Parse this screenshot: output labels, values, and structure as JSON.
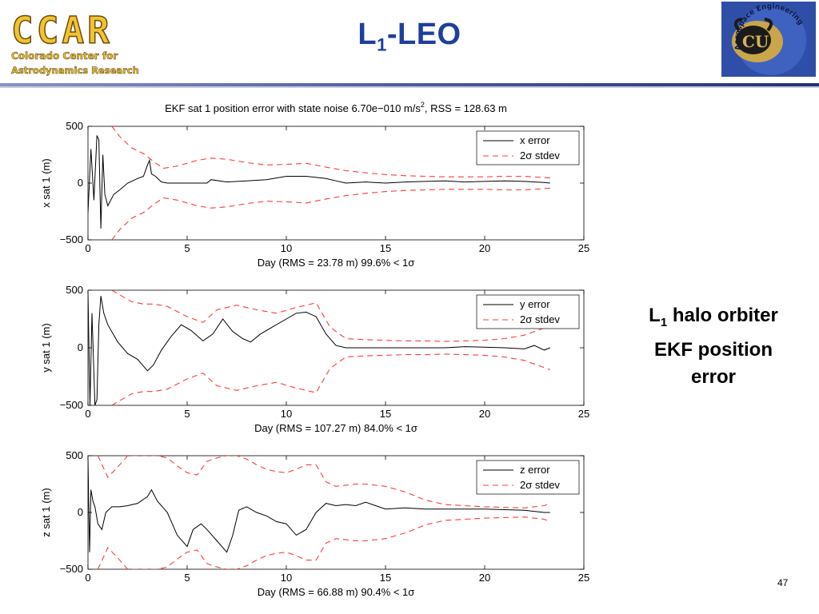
{
  "slide": {
    "title_main": "L",
    "title_sub": "1",
    "title_rest": "-LEO",
    "caption_main": "L",
    "caption_sub": "1",
    "caption_line1_rest": " halo orbiter",
    "caption_line2": "EKF position",
    "caption_line3": "error",
    "page_number": "47"
  },
  "logos": {
    "ccar": {
      "big_text": "CCAR",
      "line1": "Colorado Center for",
      "line2": "Astrodynamics Research"
    },
    "cu": {
      "emblem_text": "CU",
      "arc_text": "Aerospace Engineering"
    }
  },
  "colors": {
    "title": "#1f3f9e",
    "error_line": "#000000",
    "stdev_line": "#ff3b3b",
    "rule": "#232f7e"
  },
  "chart_data": [
    {
      "type": "line",
      "title_pre": "EKF sat 1 position error with state noise 6.70e−010 m/s",
      "title_sup": "2",
      "title_post": ", RSS = 128.63 m",
      "xlabel": "Day (RMS = 23.78 m) 99.6% < 1σ",
      "ylabel": "x sat 1 (m)",
      "xlim": [
        0,
        25
      ],
      "ylim": [
        -500,
        500
      ],
      "xticks": [
        "0",
        "5",
        "10",
        "15",
        "20",
        "25"
      ],
      "yticks": [
        "−500",
        "0",
        "500"
      ],
      "legend_position": "top-right",
      "series": [
        {
          "name": "x error",
          "style": "solid",
          "x": [
            0,
            0.15,
            0.3,
            0.45,
            0.55,
            0.65,
            0.75,
            0.85,
            1.0,
            1.3,
            1.6,
            2.0,
            2.5,
            2.8,
            3.0,
            3.1,
            3.2,
            3.4,
            3.7,
            4.0,
            5.0,
            6.0,
            6.2,
            7.0,
            8.0,
            9.0,
            10.0,
            11.0,
            12.0,
            12.5,
            13.0,
            14.0,
            15.0,
            16.0,
            17.0,
            18.0,
            19.0,
            20.0,
            21.0,
            22.0,
            22.5,
            23.0,
            23.3
          ],
          "y": [
            -260,
            300,
            -150,
            420,
            380,
            -400,
            250,
            -100,
            -200,
            -100,
            -60,
            0,
            40,
            60,
            160,
            200,
            80,
            60,
            10,
            0,
            0,
            0,
            30,
            10,
            20,
            30,
            60,
            60,
            40,
            20,
            0,
            10,
            0,
            10,
            15,
            20,
            10,
            15,
            20,
            15,
            10,
            5,
            0
          ]
        },
        {
          "name": "2σ stdev",
          "style": "dashed",
          "upper": {
            "x": [
              1.2,
              1.6,
              2.2,
              2.8,
              3.3,
              3.8,
              4.5,
              5.5,
              6.2,
              7.0,
              8.0,
              9.0,
              10.0,
              11.0,
              12.0,
              13.0,
              14.0,
              15.0,
              16.0,
              17.0,
              18.0,
              19.0,
              20.0,
              21.0,
              22.0,
              23.3
            ],
            "y": [
              500,
              410,
              310,
              260,
              190,
              130,
              150,
              200,
              220,
              210,
              180,
              160,
              165,
              175,
              140,
              110,
              90,
              75,
              65,
              60,
              55,
              55,
              55,
              60,
              60,
              45
            ]
          },
          "lower": {
            "x": [
              1.2,
              1.6,
              2.2,
              2.8,
              3.3,
              3.8,
              4.5,
              5.5,
              6.2,
              7.0,
              8.0,
              9.0,
              10.0,
              11.0,
              12.0,
              13.0,
              14.0,
              15.0,
              16.0,
              17.0,
              18.0,
              19.0,
              20.0,
              21.0,
              22.0,
              23.3
            ],
            "y": [
              -500,
              -410,
              -310,
              -260,
              -190,
              -130,
              -150,
              -200,
              -220,
              -210,
              -180,
              -160,
              -165,
              -175,
              -140,
              -110,
              -90,
              -75,
              -65,
              -60,
              -55,
              -55,
              -55,
              -60,
              -60,
              -45
            ]
          }
        }
      ]
    },
    {
      "type": "line",
      "title_pre": "",
      "title_sup": "",
      "title_post": "",
      "xlabel": "Day (RMS = 107.27 m) 84.0% < 1σ",
      "ylabel": "y sat 1 (m)",
      "xlim": [
        0,
        25
      ],
      "ylim": [
        -500,
        500
      ],
      "xticks": [
        "0",
        "5",
        "10",
        "15",
        "20",
        "25"
      ],
      "yticks": [
        "−500",
        "0",
        "500"
      ],
      "legend_position": "top-right",
      "series": [
        {
          "name": "y error",
          "style": "solid",
          "x": [
            0,
            0.1,
            0.2,
            0.35,
            0.45,
            0.55,
            0.65,
            0.8,
            1.0,
            1.5,
            2.0,
            2.5,
            3.0,
            3.3,
            3.7,
            4.2,
            4.7,
            5.2,
            5.8,
            6.3,
            6.8,
            7.3,
            7.8,
            8.2,
            8.7,
            9.3,
            10.0,
            10.5,
            11.0,
            11.5,
            12.0,
            12.5,
            13.0,
            14.0,
            15.0,
            16.0,
            17.0,
            18.0,
            19.0,
            20.0,
            21.0,
            22.0,
            22.5,
            23.0,
            23.3
          ],
          "y": [
            480,
            -500,
            300,
            -500,
            -450,
            200,
            450,
            300,
            200,
            50,
            -50,
            -100,
            -200,
            -150,
            -20,
            100,
            200,
            150,
            60,
            120,
            250,
            140,
            80,
            50,
            120,
            180,
            250,
            300,
            310,
            270,
            120,
            20,
            0,
            0,
            0,
            0,
            0,
            0,
            10,
            5,
            0,
            -10,
            20,
            -20,
            0
          ]
        },
        {
          "name": "2σ stdev",
          "style": "dashed",
          "upper": {
            "x": [
              1.2,
              1.6,
              2.2,
              2.8,
              3.3,
              4.0,
              5.0,
              5.8,
              6.5,
              7.5,
              8.5,
              9.5,
              10.5,
              11.5,
              12.2,
              13.0,
              14.0,
              15.0,
              16.0,
              17.0,
              18.0,
              19.0,
              20.0,
              21.0,
              22.0,
              23.3
            ],
            "y": [
              500,
              460,
              400,
              380,
              380,
              360,
              270,
              220,
              330,
              370,
              330,
              300,
              350,
              390,
              180,
              80,
              70,
              65,
              60,
              60,
              55,
              60,
              65,
              80,
              110,
              190
            ]
          },
          "lower": {
            "x": [
              1.2,
              1.6,
              2.2,
              2.8,
              3.3,
              4.0,
              5.0,
              5.8,
              6.5,
              7.5,
              8.5,
              9.5,
              10.5,
              11.5,
              12.2,
              13.0,
              14.0,
              15.0,
              16.0,
              17.0,
              18.0,
              19.0,
              20.0,
              21.0,
              22.0,
              23.3
            ],
            "y": [
              -500,
              -460,
              -400,
              -380,
              -380,
              -360,
              -270,
              -220,
              -330,
              -370,
              -330,
              -300,
              -350,
              -390,
              -180,
              -80,
              -70,
              -65,
              -60,
              -60,
              -55,
              -60,
              -65,
              -80,
              -110,
              -190
            ]
          }
        }
      ]
    },
    {
      "type": "line",
      "title_pre": "",
      "title_sup": "",
      "title_post": "",
      "xlabel": "Day (RMS = 66.88 m) 90.4% < 1σ",
      "ylabel": "z sat 1 (m)",
      "xlim": [
        0,
        25
      ],
      "ylim": [
        -500,
        500
      ],
      "xticks": [
        "0",
        "5",
        "10",
        "15",
        "20",
        "25"
      ],
      "yticks": [
        "−500",
        "0",
        "500"
      ],
      "legend_position": "top-right",
      "series": [
        {
          "name": "z error",
          "style": "solid",
          "x": [
            0,
            0.08,
            0.15,
            0.25,
            0.35,
            0.5,
            0.7,
            0.9,
            1.2,
            1.6,
            2.0,
            2.5,
            3.0,
            3.2,
            3.5,
            4.0,
            4.5,
            5.0,
            5.3,
            5.7,
            6.0,
            6.5,
            7.0,
            7.3,
            7.6,
            8.0,
            8.5,
            9.0,
            9.5,
            10.0,
            10.5,
            11.0,
            11.5,
            12.0,
            12.5,
            13.0,
            13.5,
            14.0,
            14.5,
            15.0,
            16.0,
            17.0,
            18.0,
            19.0,
            20.0,
            21.0,
            22.0,
            23.0,
            23.3
          ],
          "y": [
            470,
            -350,
            200,
            100,
            50,
            -100,
            -150,
            0,
            50,
            50,
            60,
            80,
            140,
            200,
            100,
            0,
            -200,
            -300,
            -150,
            -100,
            -150,
            -250,
            -350,
            -200,
            20,
            50,
            0,
            -30,
            -80,
            -100,
            -200,
            -150,
            0,
            80,
            60,
            70,
            60,
            90,
            60,
            30,
            40,
            30,
            30,
            30,
            30,
            25,
            20,
            0,
            0
          ]
        },
        {
          "name": "2σ stdev",
          "style": "dashed",
          "upper": {
            "x": [
              0.5,
              1.0,
              1.5,
              2.0,
              2.5,
              3.0,
              3.5,
              4.0,
              4.5,
              5.0,
              5.5,
              6.0,
              6.5,
              7.0,
              7.5,
              8.0,
              8.5,
              9.0,
              9.5,
              10.0,
              10.5,
              11.0,
              11.5,
              12.0,
              12.5,
              13.0,
              13.5,
              14.0,
              15.0,
              16.0,
              17.0,
              18.0,
              19.0,
              20.0,
              21.0,
              22.0,
              23.0,
              23.3
            ],
            "y": [
              500,
              310,
              400,
              500,
              500,
              500,
              500,
              480,
              410,
              350,
              330,
              450,
              480,
              500,
              500,
              470,
              420,
              380,
              360,
              350,
              380,
              420,
              420,
              270,
              230,
              240,
              250,
              250,
              230,
              180,
              110,
              70,
              60,
              50,
              45,
              40,
              60,
              80
            ]
          },
          "lower": {
            "x": [
              0.5,
              1.0,
              1.5,
              2.0,
              2.5,
              3.0,
              3.5,
              4.0,
              4.5,
              5.0,
              5.5,
              6.0,
              6.5,
              7.0,
              7.5,
              8.0,
              8.5,
              9.0,
              9.5,
              10.0,
              10.5,
              11.0,
              11.5,
              12.0,
              12.5,
              13.0,
              13.5,
              14.0,
              15.0,
              16.0,
              17.0,
              18.0,
              19.0,
              20.0,
              21.0,
              22.0,
              23.0,
              23.3
            ],
            "y": [
              -500,
              -310,
              -400,
              -500,
              -500,
              -500,
              -500,
              -480,
              -410,
              -350,
              -330,
              -450,
              -480,
              -500,
              -500,
              -470,
              -420,
              -380,
              -360,
              -350,
              -380,
              -420,
              -420,
              -270,
              -230,
              -240,
              -250,
              -250,
              -230,
              -180,
              -110,
              -70,
              -60,
              -50,
              -45,
              -40,
              -60,
              -80
            ]
          }
        }
      ]
    }
  ]
}
